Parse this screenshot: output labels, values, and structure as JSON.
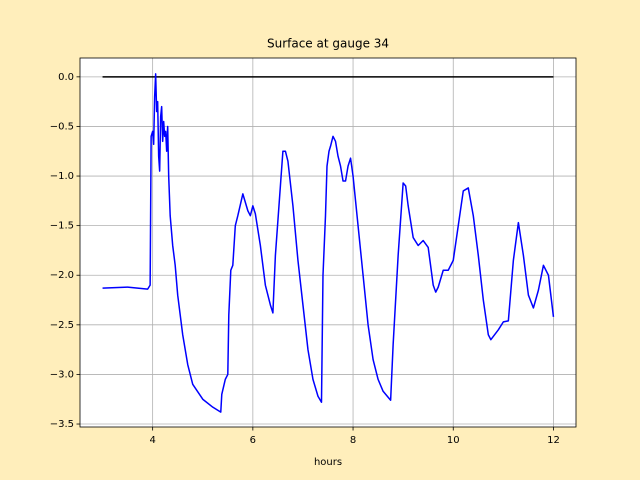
{
  "chart_data": {
    "type": "line",
    "title": "Surface at gauge 34",
    "xlabel": "hours",
    "xlim": [
      2.55,
      12.45
    ],
    "ylim": [
      -3.53,
      0.19
    ],
    "xticks": [
      4,
      6,
      8,
      10,
      12
    ],
    "yticks": [
      {
        "value": 0,
        "label": "0.0"
      },
      {
        "value": -0.5,
        "label": "−0.5"
      },
      {
        "value": -1,
        "label": "−1.0"
      },
      {
        "value": -1.5,
        "label": "−1.5"
      },
      {
        "value": -2,
        "label": "−2.0"
      },
      {
        "value": -2.5,
        "label": "−2.5"
      },
      {
        "value": -3,
        "label": "−3.0"
      },
      {
        "value": -3.5,
        "label": "−3.5"
      }
    ],
    "grid": true,
    "series": [
      {
        "color": "#000000",
        "x": [
          3,
          12
        ],
        "values": [
          0,
          0
        ]
      },
      {
        "color": "#0000ff",
        "x": [
          3.0,
          3.5,
          3.9,
          3.95,
          3.97,
          4.0,
          4.02,
          4.04,
          4.06,
          4.08,
          4.1,
          4.12,
          4.14,
          4.16,
          4.18,
          4.2,
          4.22,
          4.24,
          4.26,
          4.28,
          4.3,
          4.32,
          4.35,
          4.4,
          4.45,
          4.5,
          4.6,
          4.7,
          4.8,
          5.0,
          5.2,
          5.36,
          5.38,
          5.45,
          5.5,
          5.52,
          5.56,
          5.6,
          5.65,
          5.7,
          5.8,
          5.9,
          5.95,
          6.0,
          6.05,
          6.15,
          6.25,
          6.35,
          6.4,
          6.45,
          6.55,
          6.6,
          6.65,
          6.7,
          6.8,
          6.9,
          7.0,
          7.1,
          7.2,
          7.3,
          7.37,
          7.4,
          7.45,
          7.48,
          7.52,
          7.55,
          7.6,
          7.65,
          7.7,
          7.75,
          7.8,
          7.85,
          7.9,
          7.95,
          8.0,
          8.1,
          8.2,
          8.3,
          8.4,
          8.5,
          8.6,
          8.7,
          8.75,
          8.8,
          8.9,
          9.0,
          9.05,
          9.1,
          9.2,
          9.3,
          9.4,
          9.5,
          9.6,
          9.65,
          9.7,
          9.8,
          9.9,
          10.0,
          10.1,
          10.2,
          10.3,
          10.4,
          10.5,
          10.6,
          10.7,
          10.75,
          10.9,
          11.0,
          11.1,
          11.2,
          11.3,
          11.4,
          11.5,
          11.6,
          11.7,
          11.8,
          11.9,
          12.0
        ],
        "values": [
          -2.13,
          -2.12,
          -2.14,
          -2.1,
          -0.6,
          -0.55,
          -0.68,
          -0.2,
          0.03,
          -0.35,
          -0.25,
          -0.8,
          -0.95,
          -0.4,
          -0.3,
          -0.65,
          -0.45,
          -0.6,
          -0.55,
          -0.75,
          -0.5,
          -1.0,
          -1.4,
          -1.7,
          -1.9,
          -2.2,
          -2.6,
          -2.9,
          -3.1,
          -3.25,
          -3.33,
          -3.38,
          -3.2,
          -3.05,
          -3.0,
          -2.4,
          -1.95,
          -1.9,
          -1.5,
          -1.4,
          -1.18,
          -1.35,
          -1.4,
          -1.3,
          -1.38,
          -1.7,
          -2.1,
          -2.3,
          -2.38,
          -1.8,
          -1.1,
          -0.75,
          -0.75,
          -0.85,
          -1.3,
          -1.85,
          -2.3,
          -2.75,
          -3.05,
          -3.22,
          -3.28,
          -2.0,
          -1.4,
          -0.9,
          -0.75,
          -0.7,
          -0.6,
          -0.65,
          -0.8,
          -0.9,
          -1.05,
          -1.05,
          -0.9,
          -0.82,
          -1.0,
          -1.5,
          -2.0,
          -2.5,
          -2.85,
          -3.05,
          -3.17,
          -3.23,
          -3.26,
          -2.7,
          -1.8,
          -1.07,
          -1.1,
          -1.3,
          -1.62,
          -1.7,
          -1.65,
          -1.72,
          -2.1,
          -2.17,
          -2.12,
          -1.95,
          -1.95,
          -1.85,
          -1.5,
          -1.15,
          -1.12,
          -1.4,
          -1.8,
          -2.25,
          -2.6,
          -2.65,
          -2.55,
          -2.47,
          -2.46,
          -1.85,
          -1.47,
          -1.8,
          -2.2,
          -2.33,
          -2.15,
          -1.9,
          -2.0,
          -2.42
        ]
      }
    ]
  }
}
